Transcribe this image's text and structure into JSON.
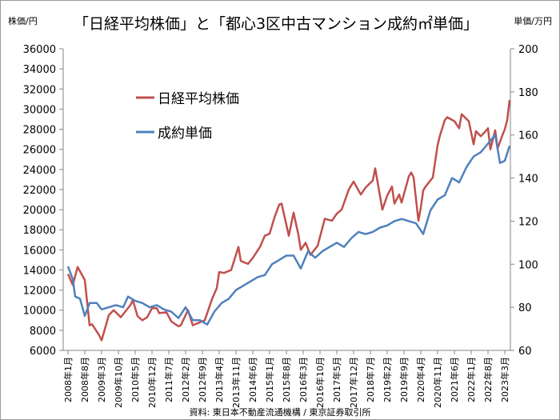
{
  "chart_data": {
    "type": "line",
    "title": "「日経平均株価」と「都心3区中古マンション成約㎡単価」",
    "ylabel_left": "株価/円",
    "ylabel_right": "単価/万円",
    "source": "資料: 東日本不動産流通機構 / 東京証券取引所",
    "ylim_left": [
      6000,
      36000
    ],
    "ylim_right": [
      60,
      200
    ],
    "yticks_left": [
      6000,
      8000,
      10000,
      12000,
      14000,
      16000,
      18000,
      20000,
      22000,
      24000,
      26000,
      28000,
      30000,
      32000,
      34000,
      36000
    ],
    "yticks_right": [
      60,
      80,
      100,
      120,
      140,
      160,
      180,
      200
    ],
    "xticks": [
      "2008年1月",
      "2008年8月",
      "2009年3月",
      "2009年10月",
      "2010年5月",
      "2010年12月",
      "2011年7月",
      "2012年2月",
      "2012年9月",
      "2013年4月",
      "2013年11月",
      "2014年6月",
      "2015年1月",
      "2015年8月",
      "2016年3月",
      "2016年10月",
      "2017年5月",
      "2017年12月",
      "2018年7月",
      "2019年2月",
      "2019年9月",
      "2020年4月",
      "2020年11月",
      "2021年6月",
      "2022年1月",
      "2022年8月",
      "2023年3月"
    ],
    "xrange": [
      "2008-01",
      "2023-05"
    ],
    "grid": false,
    "legend_placement": "top-left",
    "series": [
      {
        "name": "日経平均株価",
        "axis": "left",
        "color": "#c0504d",
        "points": [
          [
            "2008-01",
            13600
          ],
          [
            "2008-03",
            12500
          ],
          [
            "2008-05",
            14300
          ],
          [
            "2008-08",
            13000
          ],
          [
            "2008-10",
            8500
          ],
          [
            "2008-11",
            8600
          ],
          [
            "2009-02",
            7500
          ],
          [
            "2009-03",
            7000
          ],
          [
            "2009-06",
            9500
          ],
          [
            "2009-08",
            10000
          ],
          [
            "2009-11",
            9300
          ],
          [
            "2010-03",
            10500
          ],
          [
            "2010-04",
            11000
          ],
          [
            "2010-06",
            9400
          ],
          [
            "2010-08",
            9000
          ],
          [
            "2010-10",
            9300
          ],
          [
            "2010-12",
            10200
          ],
          [
            "2011-02",
            10200
          ],
          [
            "2011-03",
            9700
          ],
          [
            "2011-06",
            9800
          ],
          [
            "2011-08",
            8900
          ],
          [
            "2011-11",
            8400
          ],
          [
            "2011-12",
            8500
          ],
          [
            "2012-02",
            9500
          ],
          [
            "2012-03",
            10000
          ],
          [
            "2012-05",
            8500
          ],
          [
            "2012-08",
            8800
          ],
          [
            "2012-10",
            9000
          ],
          [
            "2012-12",
            10400
          ],
          [
            "2013-01",
            11100
          ],
          [
            "2013-03",
            12200
          ],
          [
            "2013-04",
            13800
          ],
          [
            "2013-06",
            13700
          ],
          [
            "2013-09",
            14000
          ],
          [
            "2013-12",
            16300
          ],
          [
            "2014-01",
            14900
          ],
          [
            "2014-04",
            14600
          ],
          [
            "2014-06",
            15200
          ],
          [
            "2014-09",
            16300
          ],
          [
            "2014-11",
            17400
          ],
          [
            "2015-01",
            17600
          ],
          [
            "2015-03",
            19200
          ],
          [
            "2015-05",
            20500
          ],
          [
            "2015-06",
            20600
          ],
          [
            "2015-09",
            17400
          ],
          [
            "2015-11",
            19700
          ],
          [
            "2016-01",
            17500
          ],
          [
            "2016-02",
            16000
          ],
          [
            "2016-04",
            16700
          ],
          [
            "2016-06",
            15500
          ],
          [
            "2016-09",
            16400
          ],
          [
            "2016-12",
            19100
          ],
          [
            "2017-03",
            18900
          ],
          [
            "2017-05",
            19600
          ],
          [
            "2017-07",
            20000
          ],
          [
            "2017-10",
            22000
          ],
          [
            "2017-12",
            22800
          ],
          [
            "2018-03",
            21500
          ],
          [
            "2018-05",
            22200
          ],
          [
            "2018-08",
            22900
          ],
          [
            "2018-09",
            24100
          ],
          [
            "2018-12",
            20000
          ],
          [
            "2019-02",
            21400
          ],
          [
            "2019-04",
            22300
          ],
          [
            "2019-05",
            20600
          ],
          [
            "2019-07",
            21500
          ],
          [
            "2019-08",
            20700
          ],
          [
            "2019-11",
            23300
          ],
          [
            "2019-12",
            23700
          ],
          [
            "2020-01",
            23200
          ],
          [
            "2020-03",
            18900
          ],
          [
            "2020-04",
            20200
          ],
          [
            "2020-05",
            21900
          ],
          [
            "2020-06",
            22300
          ],
          [
            "2020-09",
            23200
          ],
          [
            "2020-11",
            26400
          ],
          [
            "2020-12",
            27400
          ],
          [
            "2021-02",
            28900
          ],
          [
            "2021-03",
            29200
          ],
          [
            "2021-06",
            28800
          ],
          [
            "2021-08",
            28100
          ],
          [
            "2021-09",
            29500
          ],
          [
            "2021-12",
            28800
          ],
          [
            "2022-02",
            26500
          ],
          [
            "2022-03",
            27800
          ],
          [
            "2022-05",
            27300
          ],
          [
            "2022-07",
            27800
          ],
          [
            "2022-08",
            28100
          ],
          [
            "2022-09",
            26000
          ],
          [
            "2022-11",
            27900
          ],
          [
            "2022-12",
            26100
          ],
          [
            "2023-02",
            27400
          ],
          [
            "2023-03",
            28000
          ],
          [
            "2023-04",
            28900
          ],
          [
            "2023-05",
            30900
          ]
        ]
      },
      {
        "name": "成約単価",
        "axis": "right",
        "color": "#4f81bd",
        "points": [
          [
            "2008-01",
            99
          ],
          [
            "2008-03",
            93
          ],
          [
            "2008-04",
            85
          ],
          [
            "2008-06",
            84
          ],
          [
            "2008-08",
            76
          ],
          [
            "2008-10",
            82
          ],
          [
            "2009-01",
            82
          ],
          [
            "2009-03",
            79
          ],
          [
            "2009-06",
            80
          ],
          [
            "2009-09",
            81
          ],
          [
            "2009-12",
            80
          ],
          [
            "2010-02",
            85
          ],
          [
            "2010-05",
            83
          ],
          [
            "2010-08",
            82
          ],
          [
            "2010-11",
            80
          ],
          [
            "2011-02",
            81
          ],
          [
            "2011-05",
            79
          ],
          [
            "2011-08",
            78
          ],
          [
            "2011-11",
            75
          ],
          [
            "2012-02",
            80
          ],
          [
            "2012-05",
            74
          ],
          [
            "2012-08",
            74
          ],
          [
            "2012-11",
            72
          ],
          [
            "2013-02",
            78
          ],
          [
            "2013-05",
            82
          ],
          [
            "2013-08",
            84
          ],
          [
            "2013-11",
            88
          ],
          [
            "2014-02",
            90
          ],
          [
            "2014-05",
            92
          ],
          [
            "2014-08",
            94
          ],
          [
            "2014-11",
            95
          ],
          [
            "2015-02",
            100
          ],
          [
            "2015-05",
            102
          ],
          [
            "2015-08",
            104
          ],
          [
            "2015-11",
            104
          ],
          [
            "2016-02",
            98
          ],
          [
            "2016-05",
            106
          ],
          [
            "2016-08",
            103
          ],
          [
            "2016-11",
            106
          ],
          [
            "2017-02",
            108
          ],
          [
            "2017-05",
            110
          ],
          [
            "2017-08",
            108
          ],
          [
            "2017-11",
            112
          ],
          [
            "2018-02",
            115
          ],
          [
            "2018-05",
            114
          ],
          [
            "2018-08",
            115
          ],
          [
            "2018-11",
            117
          ],
          [
            "2019-02",
            118
          ],
          [
            "2019-05",
            120
          ],
          [
            "2019-08",
            121
          ],
          [
            "2019-11",
            120
          ],
          [
            "2020-02",
            119
          ],
          [
            "2020-05",
            114
          ],
          [
            "2020-08",
            125
          ],
          [
            "2020-11",
            130
          ],
          [
            "2021-02",
            132
          ],
          [
            "2021-05",
            140
          ],
          [
            "2021-08",
            138
          ],
          [
            "2021-11",
            145
          ],
          [
            "2022-02",
            150
          ],
          [
            "2022-05",
            152
          ],
          [
            "2022-08",
            156
          ],
          [
            "2022-11",
            160
          ],
          [
            "2023-01",
            147
          ],
          [
            "2023-03",
            148
          ],
          [
            "2023-05",
            155
          ]
        ]
      }
    ]
  }
}
